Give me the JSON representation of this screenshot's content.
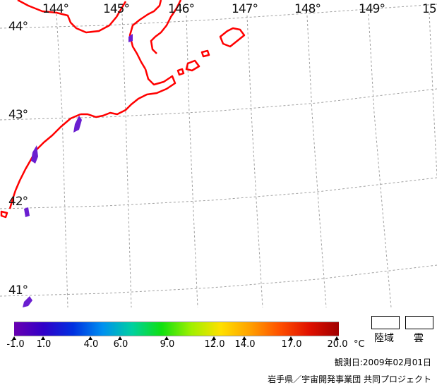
{
  "map": {
    "longitude_labels": [
      "144°",
      "145°",
      "146°",
      "147°",
      "148°",
      "149°",
      "15"
    ],
    "latitude_labels": [
      "44°",
      "43°",
      "42°",
      "41°"
    ],
    "colors": {
      "coastline": "#ff0000",
      "graticule": "#a0a0a0",
      "sst_patch": "#6a1ed0"
    }
  },
  "colorbar": {
    "tick_labels": [
      "-1.0",
      "1.0",
      "4.0",
      "6.0",
      "9.0",
      "12.0",
      "14.0",
      "17.0",
      "20.0"
    ],
    "tick_values": [
      -1.0,
      1.0,
      4.0,
      6.0,
      9.0,
      12.0,
      14.0,
      17.0,
      20.0
    ],
    "unit": "°C",
    "colors": [
      "#6a00b0",
      "#3000c8",
      "#0030e0",
      "#0090f0",
      "#00d0a0",
      "#10e010",
      "#a0f000",
      "#ffe000",
      "#ffa000",
      "#ff5000",
      "#e01000",
      "#a00000"
    ]
  },
  "legend": {
    "land_label": "陸域",
    "cloud_label": "雲"
  },
  "footer": {
    "observation_date": "観測日:2009年02月01日",
    "credit": "岩手県／宇宙開発事業団 共同プロジェクト"
  }
}
